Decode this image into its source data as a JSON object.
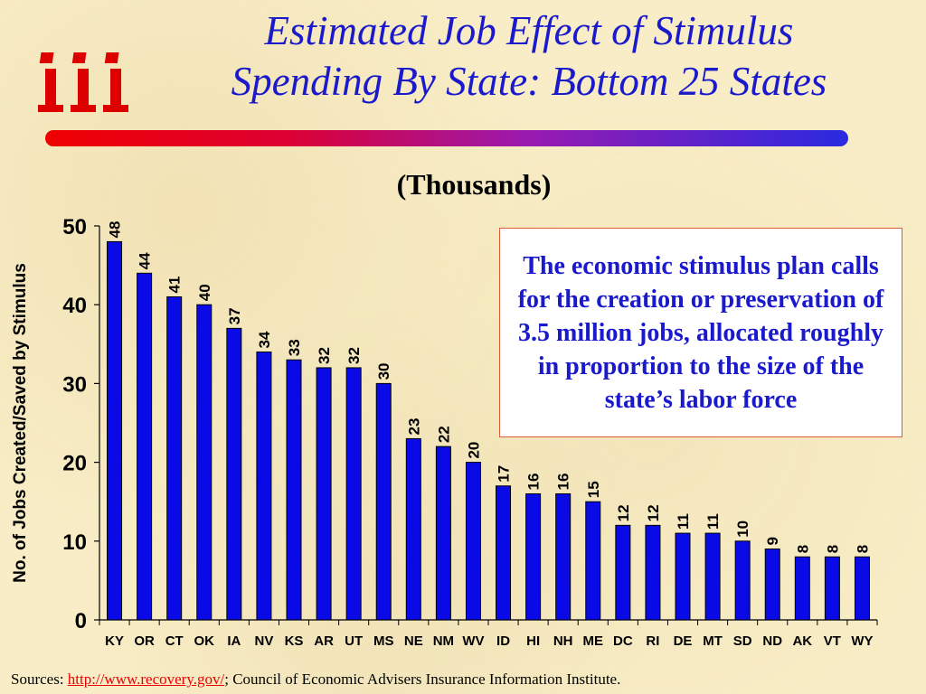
{
  "header": {
    "title_line1": "Estimated Job Effect of Stimulus",
    "title_line2": "Spending By State: Bottom 25 States",
    "logo_text": "iii",
    "logo_color": "#dd0000",
    "title_color": "#1a1acc"
  },
  "colors": {
    "bar": "#0a0ae6",
    "bar_outline": "#000000",
    "note_text": "#1a1acc",
    "note_border": "#e05a3a",
    "link": "#ee0000"
  },
  "note": {
    "text": "The economic stimulus plan calls for the creation or preservation of 3.5 million jobs, allocated roughly in proportion to the size of the state’s labor force"
  },
  "footer": {
    "sources_label": "Sources: ",
    "link_text": "http://www.recovery.gov/",
    "rest": "; Council of Economic Advisers Insurance Information Institute."
  },
  "chart_data": {
    "type": "bar",
    "title": "(Thousands)",
    "xlabel": "",
    "ylabel": "No. of Jobs Created/Saved by Stimulus",
    "ylim": [
      0,
      50
    ],
    "yticks": [
      0,
      10,
      20,
      30,
      40,
      50
    ],
    "grid": false,
    "categories": [
      "KY",
      "OR",
      "CT",
      "OK",
      "IA",
      "NV",
      "KS",
      "AR",
      "UT",
      "MS",
      "NE",
      "NM",
      "WV",
      "ID",
      "HI",
      "NH",
      "ME",
      "DC",
      "RI",
      "DE",
      "MT",
      "SD",
      "ND",
      "AK",
      "VT",
      "WY"
    ],
    "values": [
      48,
      44,
      41,
      40,
      37,
      34,
      33,
      32,
      32,
      30,
      23,
      22,
      20,
      17,
      16,
      16,
      15,
      12,
      12,
      11,
      11,
      10,
      9,
      8,
      8,
      8
    ],
    "data_labels": true
  }
}
